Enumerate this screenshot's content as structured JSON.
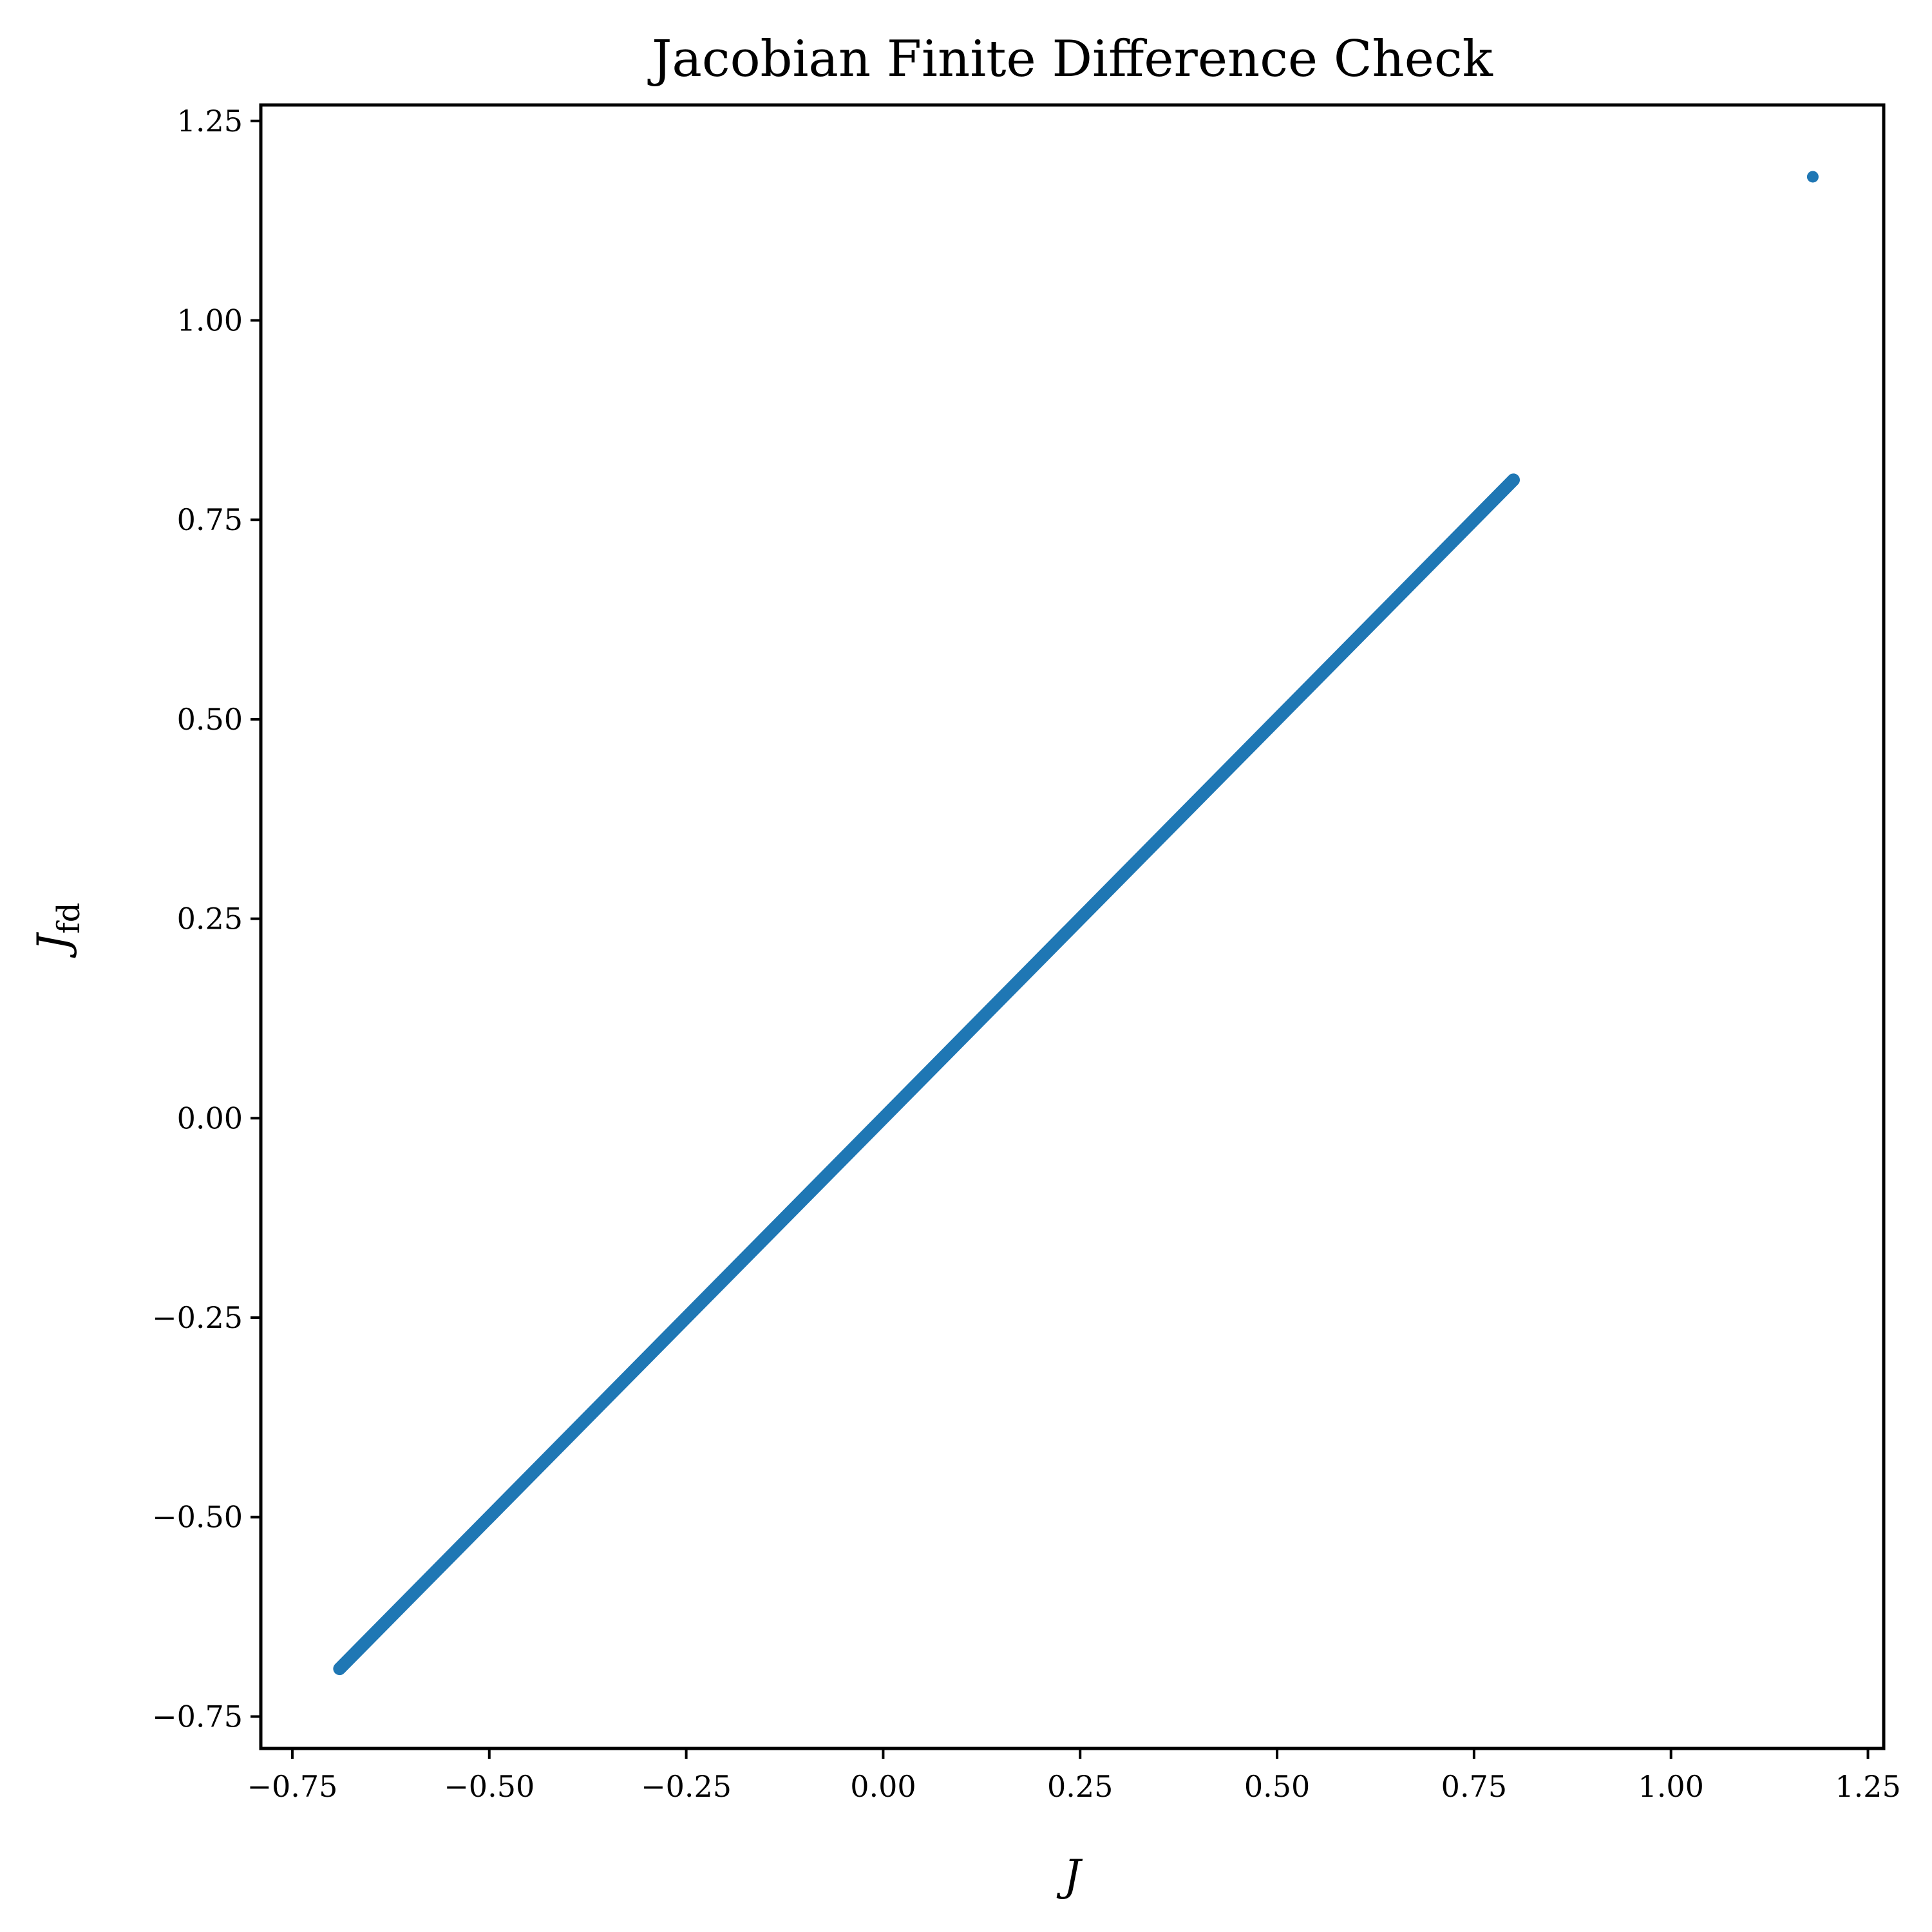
{
  "chart_data": {
    "type": "scatter",
    "title": "Jacobian Finite Difference Check",
    "xlabel": "J",
    "ylabel": {
      "main": "J",
      "subscript": "fd"
    },
    "xlim": [
      -0.79,
      1.27
    ],
    "ylim": [
      -0.79,
      1.27
    ],
    "xticks": [
      -0.75,
      -0.5,
      -0.25,
      0.0,
      0.25,
      0.5,
      0.75,
      1.0,
      1.25
    ],
    "xtick_labels": [
      "−0.75",
      "−0.50",
      "−0.25",
      "0.00",
      "0.25",
      "0.50",
      "0.75",
      "1.00",
      "1.25"
    ],
    "yticks": [
      -0.75,
      -0.5,
      -0.25,
      0.0,
      0.25,
      0.5,
      0.75,
      1.0,
      1.25
    ],
    "ytick_labels": [
      "−0.75",
      "−0.50",
      "−0.25",
      "0.00",
      "0.25",
      "0.50",
      "0.75",
      "1.00",
      "1.25"
    ],
    "grid": false,
    "series": [
      {
        "color": "#1f77b4",
        "line_segment": {
          "x_start": -0.69,
          "y_start": -0.69,
          "x_end": 0.8,
          "y_end": 0.8
        },
        "points": [
          {
            "x": 1.18,
            "y": 1.18
          }
        ]
      }
    ]
  }
}
